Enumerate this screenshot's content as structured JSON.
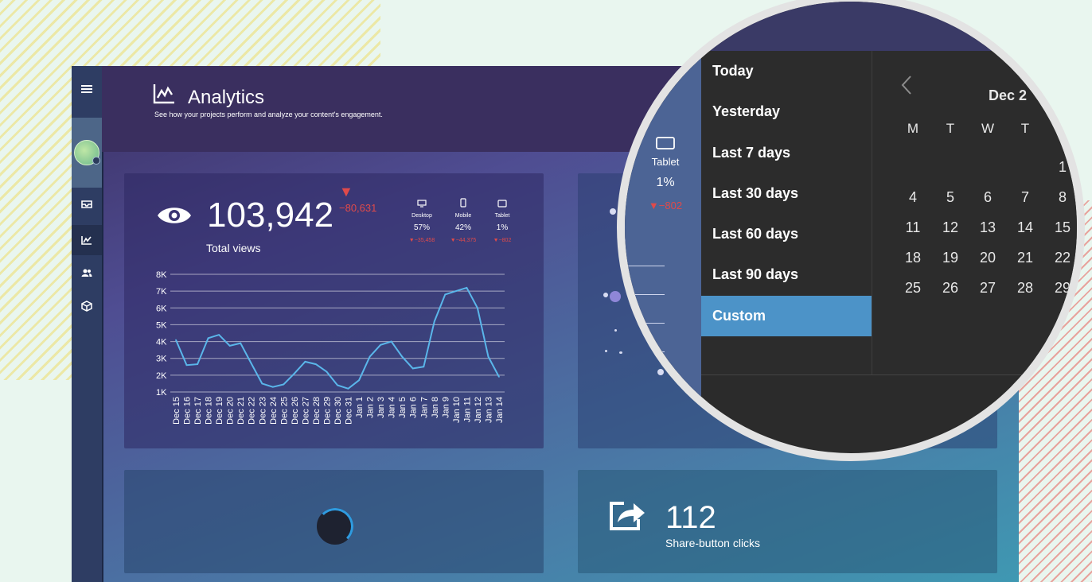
{
  "header": {
    "title": "Analytics",
    "subtitle": "See how your projects perform and analyze your content's engagement."
  },
  "views": {
    "total": "103,942",
    "label": "Total views",
    "delta": "−80,631",
    "devices": [
      {
        "name": "Desktop",
        "pct": "57%",
        "delta": "▼−35,458"
      },
      {
        "name": "Mobile",
        "pct": "42%",
        "delta": "▼−44,375"
      },
      {
        "name": "Tablet",
        "pct": "1%",
        "delta": "▼−802"
      }
    ]
  },
  "share": {
    "count": "112",
    "label": "Share-button clicks"
  },
  "magnifier": {
    "tablet": {
      "name": "Tablet",
      "pct": "1%",
      "delta": "▼−802"
    },
    "presets": [
      "Today",
      "Yesterday",
      "Last 7 days",
      "Last 30 days",
      "Last 60 days",
      "Last 90 days",
      "Custom"
    ],
    "active_preset": "Custom",
    "calendar": {
      "month": "Dec 2",
      "weekdays": [
        "M",
        "T",
        "W",
        "T",
        ""
      ],
      "weeks": [
        [
          "",
          "",
          "",
          "",
          "1"
        ],
        [
          "4",
          "5",
          "6",
          "7",
          "8"
        ],
        [
          "11",
          "12",
          "13",
          "14",
          "15"
        ],
        [
          "18",
          "19",
          "20",
          "21",
          "22"
        ],
        [
          "25",
          "26",
          "27",
          "28",
          "29"
        ]
      ]
    }
  },
  "colors": {
    "line": "#5ab6ea",
    "delta_negative": "#e04a4a",
    "preset_active": "#4c93c8"
  },
  "chart_data": {
    "type": "line",
    "x": [
      "Dec 15",
      "Dec 16",
      "Dec 17",
      "Dec 18",
      "Dec 19",
      "Dec 20",
      "Dec 21",
      "Dec 22",
      "Dec 23",
      "Dec 24",
      "Dec 25",
      "Dec 26",
      "Dec 27",
      "Dec 28",
      "Dec 29",
      "Dec 30",
      "Dec 31",
      "Jan 1",
      "Jan 2",
      "Jan 3",
      "Jan 4",
      "Jan 5",
      "Jan 6",
      "Jan 7",
      "Jan 8",
      "Jan 9",
      "Jan 10",
      "Jan 11",
      "Jan 12",
      "Jan 13",
      "Jan 14"
    ],
    "series": [
      {
        "values": [
          4100,
          2600,
          2650,
          4200,
          4400,
          3750,
          3900,
          2700,
          1500,
          1300,
          1450,
          2100,
          2800,
          2650,
          2200,
          1400,
          1200,
          1700,
          3100,
          3800,
          4000,
          3100,
          2400,
          2500,
          5200,
          6800,
          7000,
          7200,
          6000,
          3100,
          1900
        ]
      }
    ],
    "yticks": [
      "1K",
      "2K",
      "3K",
      "4K",
      "5K",
      "6K",
      "7K",
      "8K"
    ],
    "ylim": [
      1000,
      8000
    ],
    "grid": true
  }
}
